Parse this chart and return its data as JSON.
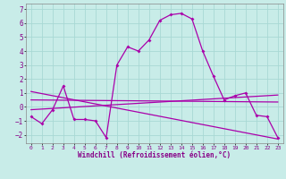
{
  "xlabel": "Windchill (Refroidissement éolien,°C)",
  "background_color": "#c8ece8",
  "grid_color": "#a8d8d4",
  "line_color": "#aa00aa",
  "xlim": [
    -0.5,
    23.5
  ],
  "ylim": [
    -2.6,
    7.4
  ],
  "yticks": [
    -2,
    -1,
    0,
    1,
    2,
    3,
    4,
    5,
    6,
    7
  ],
  "xticks": [
    0,
    1,
    2,
    3,
    4,
    5,
    6,
    7,
    8,
    9,
    10,
    11,
    12,
    13,
    14,
    15,
    16,
    17,
    18,
    19,
    20,
    21,
    22,
    23
  ],
  "curve1_x": [
    0,
    1,
    2,
    3,
    4,
    5,
    6,
    7,
    8,
    9,
    10,
    11,
    12,
    13,
    14,
    15,
    16,
    17,
    18,
    19,
    20,
    21,
    22,
    23
  ],
  "curve1_y": [
    -0.7,
    -1.2,
    -0.2,
    1.5,
    -0.9,
    -0.9,
    -1.0,
    -2.2,
    3.0,
    4.3,
    4.0,
    4.8,
    6.2,
    6.6,
    6.7,
    6.3,
    4.0,
    2.2,
    0.5,
    0.8,
    1.0,
    -0.6,
    -0.7,
    -2.2
  ],
  "line2_x": [
    0,
    23
  ],
  "line2_y": [
    0.5,
    0.35
  ],
  "line3_x": [
    0,
    23
  ],
  "line3_y": [
    -0.2,
    0.85
  ],
  "line4_x": [
    0,
    23
  ],
  "line4_y": [
    1.1,
    -2.3
  ]
}
